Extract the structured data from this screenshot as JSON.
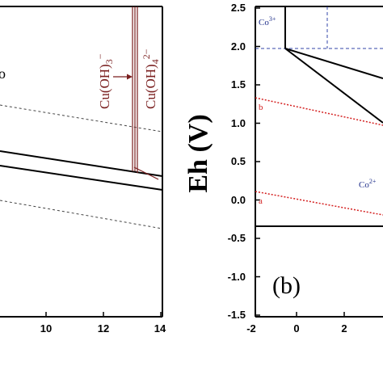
{
  "left_panel": {
    "fragment_label": "o",
    "species": {
      "cu_oh_3": "Cu(OH)",
      "cu_oh_3_sub": "3",
      "cu_oh_3_sup": "−",
      "cu_oh_4": "Cu(OH)",
      "cu_oh_4_sub": "4",
      "cu_oh_4_sup": "2−"
    },
    "x_ticks": [
      "10",
      "12",
      "14"
    ]
  },
  "right_panel": {
    "y_axis_title": "Eh (V)",
    "y_ticks": [
      "2.5",
      "2.0",
      "1.5",
      "1.0",
      "0.5",
      "0.0",
      "-0.5",
      "-1.0",
      "-1.5"
    ],
    "x_ticks": [
      "-2",
      "0",
      "2"
    ],
    "panel_label": "(b)",
    "species": {
      "co3": "Co",
      "co3_sup": "3+",
      "co2": "Co",
      "co2_sup": "2+"
    },
    "line_labels": {
      "a": "a",
      "b": "b"
    }
  },
  "colors": {
    "axis": "#000000",
    "water_lines": "#d42020",
    "boundary_lines": "#1f2f8a",
    "copper_species": "#7a1f1f",
    "dashed_gray": "#444444"
  }
}
